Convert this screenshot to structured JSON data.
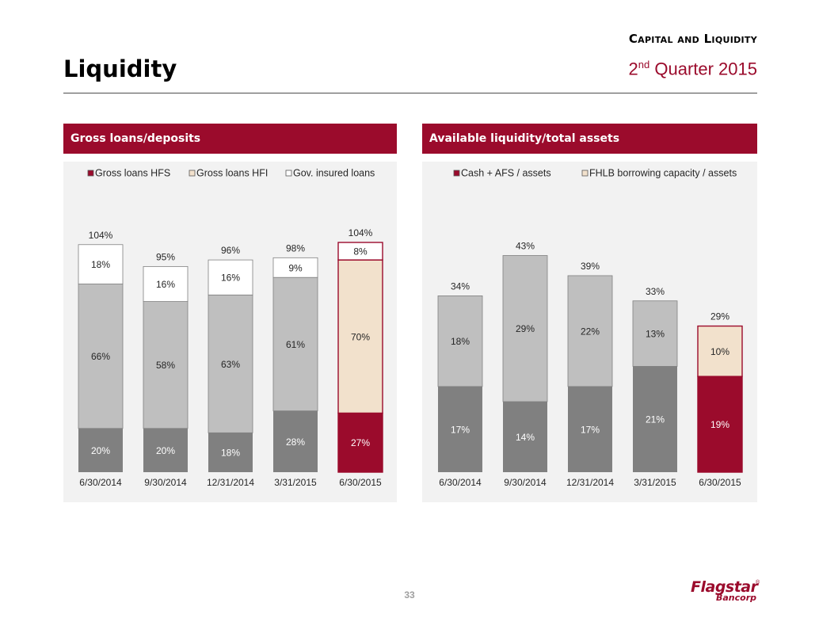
{
  "header": {
    "section_title": "Capital and Liquidity",
    "quarter_ordinal": "2",
    "quarter_sup": "nd",
    "quarter_rest": " Quarter 2015",
    "page_title": "Liquidity"
  },
  "colors": {
    "brand": "#9b0b2c",
    "gray_dark": "#808080",
    "gray_light": "#bfbfbf",
    "white": "#ffffff",
    "peach": "#f2e1cc",
    "panel_bg": "#f2f2f2"
  },
  "panels": {
    "left_title": "Gross loans/deposits",
    "right_title": "Available liquidity/total assets"
  },
  "chart_data": [
    {
      "type": "bar",
      "stacked": true,
      "title": "Gross loans/deposits",
      "categories": [
        "6/30/2014",
        "9/30/2014",
        "12/31/2014",
        "3/31/2015",
        "6/30/2015"
      ],
      "series": [
        {
          "name": "Gross loans HFS",
          "values": [
            20,
            20,
            18,
            28,
            27
          ],
          "labels": [
            "20%",
            "20%",
            "18%",
            "28%",
            "27%"
          ]
        },
        {
          "name": "Gross loans HFI",
          "values": [
            66,
            58,
            63,
            61,
            70
          ],
          "labels": [
            "66%",
            "58%",
            "63%",
            "61%",
            "70%"
          ]
        },
        {
          "name": "Gov. insured loans",
          "values": [
            18,
            16,
            16,
            9,
            8
          ],
          "labels": [
            "18%",
            "16%",
            "16%",
            "9%",
            "8%"
          ]
        }
      ],
      "totals": [
        "104%",
        "95%",
        "96%",
        "98%",
        "104%"
      ],
      "highlight_index": 4,
      "legend_position": "top",
      "ylim": [
        0,
        110
      ]
    },
    {
      "type": "bar",
      "stacked": true,
      "title": "Available liquidity/total assets",
      "categories": [
        "6/30/2014",
        "9/30/2014",
        "12/31/2014",
        "3/31/2015",
        "6/30/2015"
      ],
      "series": [
        {
          "name": "Cash + AFS / assets",
          "values": [
            17,
            14,
            17,
            21,
            19
          ],
          "labels": [
            "17%",
            "14%",
            "17%",
            "21%",
            "19%"
          ]
        },
        {
          "name": "FHLB borrowing capacity / assets",
          "values": [
            18,
            29,
            22,
            13,
            10
          ],
          "labels": [
            "18%",
            "29%",
            "22%",
            "13%",
            "10%"
          ]
        }
      ],
      "totals": [
        "34%",
        "43%",
        "39%",
        "33%",
        "29%"
      ],
      "highlight_index": 4,
      "legend_position": "top",
      "ylim": [
        0,
        50
      ]
    }
  ],
  "footer": {
    "page_number": "33",
    "logo_main": "Flagstar",
    "logo_reg": "®",
    "logo_sub": "Bancorp"
  }
}
